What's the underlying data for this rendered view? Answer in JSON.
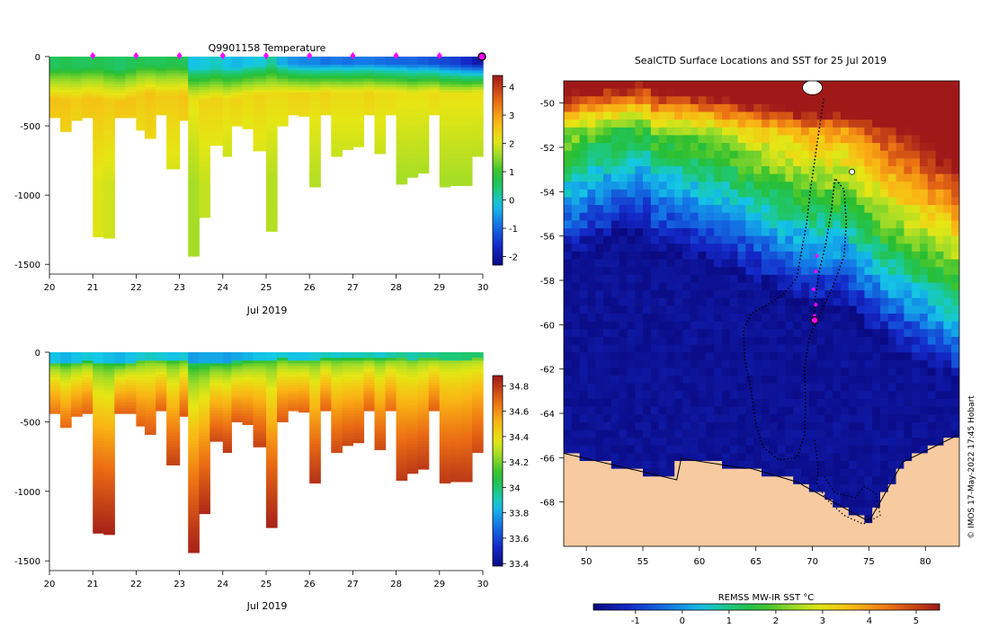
{
  "colors": {
    "land": "#f8caa0",
    "ice": "#eef0f6",
    "profile_marker": "#ff00ff",
    "current_marker": "#ff00ff",
    "axis": "#000000"
  },
  "chart_data": [
    {
      "id": "temperature_section",
      "type": "heatmap",
      "title": "Q9901158  Temperature",
      "xlabel": "Jul 2019",
      "ylabel": "",
      "x_ticks": [
        "20",
        "21",
        "22",
        "23",
        "24",
        "25",
        "26",
        "27",
        "28",
        "29",
        "30"
      ],
      "x_tick_values": [
        20,
        21,
        22,
        23,
        24,
        25,
        26,
        27,
        28,
        29,
        30
      ],
      "y_ticks": [
        "0",
        "-500",
        "-1000",
        "-1500"
      ],
      "y_tick_values": [
        0,
        -500,
        -1000,
        -1500
      ],
      "xlim": [
        20,
        30
      ],
      "ylim": [
        -1570,
        0
      ],
      "colorbar_ticks": [
        "-2",
        "-1",
        "0",
        "1",
        "2",
        "3",
        "4"
      ],
      "colorbar_values": [
        -2,
        -1,
        0,
        1,
        2,
        3,
        4
      ],
      "colorbar_range": [
        -2.3,
        4.4
      ],
      "profile_times": [
        21.0,
        22.0,
        23.0,
        24.0,
        25.0,
        26.0,
        27.0,
        28.0,
        29.0,
        30.0
      ],
      "profiles": {
        "time": [
          20.0,
          20.25,
          20.5,
          20.75,
          21.0,
          21.25,
          21.5,
          21.75,
          22.0,
          22.2,
          22.45,
          22.7,
          23.0,
          23.2,
          23.45,
          23.7,
          24.0,
          24.2,
          24.45,
          24.7,
          25.0,
          25.25,
          25.5,
          25.75,
          26.0,
          26.25,
          26.5,
          26.75,
          27.0,
          27.25,
          27.5,
          27.75,
          28.0,
          28.25,
          28.5,
          28.75,
          29.0,
          29.25,
          29.5,
          29.75,
          30.0
        ],
        "max_depth": [
          440,
          540,
          460,
          440,
          1300,
          1310,
          440,
          440,
          530,
          590,
          420,
          810,
          460,
          1440,
          1160,
          640,
          720,
          500,
          520,
          680,
          1260,
          500,
          420,
          430,
          940,
          420,
          720,
          670,
          650,
          420,
          700,
          420,
          920,
          870,
          840,
          420,
          940,
          930,
          930,
          720,
          720
        ],
        "surface_temp": [
          0.6,
          0.7,
          0.6,
          0.6,
          0.7,
          0.6,
          0.5,
          0.6,
          0.7,
          0.6,
          0.6,
          0.7,
          0.6,
          -0.2,
          -0.1,
          0.0,
          -0.2,
          -0.3,
          -0.2,
          -0.1,
          0.2,
          -0.4,
          -0.6,
          -0.7,
          -0.7,
          -0.9,
          -0.8,
          -0.9,
          -0.8,
          -0.8,
          -0.9,
          -1.0,
          -1.0,
          -1.0,
          -1.1,
          -1.2,
          -1.3,
          -1.4,
          -1.6,
          -1.9,
          -1.8
        ],
        "mixed_layer_depth": [
          150,
          160,
          150,
          140,
          150,
          160,
          170,
          150,
          120,
          110,
          120,
          120,
          120,
          150,
          160,
          150,
          150,
          140,
          120,
          120,
          110,
          100,
          110,
          110,
          110,
          100,
          100,
          100,
          100,
          100,
          100,
          100,
          100,
          110,
          100,
          100,
          110,
          110,
          110,
          100,
          110
        ],
        "deep_temp": [
          2.2,
          2.2,
          2.1,
          2.2,
          2.2,
          2.1,
          2.2,
          2.2,
          2.1,
          2.2,
          2.1,
          2.1,
          2.2,
          1.8,
          2.0,
          2.0,
          1.9,
          2.0,
          1.9,
          2.0,
          1.9,
          1.9,
          2.0,
          2.0,
          1.9,
          2.0,
          1.9,
          1.9,
          1.9,
          2.0,
          1.9,
          1.9,
          1.8,
          1.8,
          1.8,
          1.9,
          1.8,
          1.8,
          1.8,
          1.8,
          1.7
        ]
      }
    },
    {
      "id": "salinity_section",
      "type": "heatmap",
      "title": "",
      "xlabel": "Jul 2019",
      "ylabel": "",
      "x_ticks": [
        "20",
        "21",
        "22",
        "23",
        "24",
        "25",
        "26",
        "27",
        "28",
        "29",
        "30"
      ],
      "x_tick_values": [
        20,
        21,
        22,
        23,
        24,
        25,
        26,
        27,
        28,
        29,
        30
      ],
      "y_ticks": [
        "0",
        "-500",
        "-1000",
        "-1500"
      ],
      "y_tick_values": [
        0,
        -500,
        -1000,
        -1500
      ],
      "xlim": [
        20,
        30
      ],
      "ylim": [
        -1570,
        0
      ],
      "colorbar_ticks": [
        "33.4",
        "33.6",
        "33.8",
        "34",
        "34.2",
        "34.4",
        "34.6",
        "34.8"
      ],
      "colorbar_values": [
        33.4,
        33.6,
        33.8,
        34.0,
        34.2,
        34.4,
        34.6,
        34.8
      ],
      "colorbar_range": [
        33.38,
        34.88
      ],
      "surface_sal": [
        33.85,
        33.82,
        33.85,
        33.88,
        33.86,
        33.84,
        33.82,
        33.85,
        33.88,
        33.9,
        33.88,
        33.85,
        33.88,
        33.78,
        33.8,
        33.8,
        33.78,
        33.8,
        33.82,
        33.85,
        33.86,
        33.88,
        33.85,
        33.85,
        33.88,
        33.9,
        33.88,
        33.9,
        33.9,
        33.92,
        33.88,
        33.92,
        33.95,
        33.92,
        33.95,
        33.95,
        33.98,
        33.98,
        34.0,
        34.0,
        34.0
      ],
      "deep_sal": [
        34.66,
        34.68,
        34.68,
        34.7,
        34.86,
        34.86,
        34.7,
        34.7,
        34.7,
        34.72,
        34.7,
        34.78,
        34.72,
        34.86,
        34.84,
        34.76,
        34.8,
        34.72,
        34.72,
        34.78,
        34.86,
        34.72,
        34.68,
        34.7,
        34.82,
        34.7,
        34.76,
        34.76,
        34.76,
        34.7,
        34.76,
        34.68,
        34.8,
        34.8,
        34.8,
        34.7,
        34.8,
        34.8,
        34.8,
        34.76,
        34.76
      ]
    },
    {
      "id": "sst_map",
      "type": "heatmap",
      "title": "SealCTD Surface Locations and SST for 25 Jul 2019",
      "xlabel": "",
      "ylabel": "",
      "x_ticks": [
        "50",
        "55",
        "60",
        "65",
        "70",
        "75",
        "80"
      ],
      "x_tick_values": [
        50,
        55,
        60,
        65,
        70,
        75,
        80
      ],
      "y_ticks": [
        "-50",
        "-52",
        "-54",
        "-56",
        "-58",
        "-60",
        "-62",
        "-64",
        "-66",
        "-68"
      ],
      "y_tick_values": [
        -50,
        -52,
        -54,
        -56,
        -58,
        -60,
        -62,
        -64,
        -66,
        -68
      ],
      "lon_range": [
        48,
        83
      ],
      "lat_range": [
        -70,
        -49
      ],
      "colorbar_label": "REMSS MW-IR SST °C",
      "colorbar_ticks": [
        "-1",
        "0",
        "1",
        "2",
        "3",
        "4",
        "5"
      ],
      "colorbar_values": [
        -1,
        0,
        1,
        2,
        3,
        4,
        5
      ],
      "colorbar_range": [
        -1.9,
        5.5
      ],
      "current_position": {
        "lon": 70.2,
        "lat": -59.8
      },
      "recent_positions": [
        {
          "lon": 70.4,
          "lat": -56.9
        },
        {
          "lon": 70.3,
          "lat": -57.6
        },
        {
          "lon": 70.1,
          "lat": -58.4
        },
        {
          "lon": 70.3,
          "lat": -59.1
        },
        {
          "lon": 70.2,
          "lat": -59.6
        }
      ],
      "track": [
        {
          "lon": 71.0,
          "lat": -49.8
        },
        {
          "lon": 70.6,
          "lat": -51.2
        },
        {
          "lon": 70.2,
          "lat": -52.6
        },
        {
          "lon": 69.8,
          "lat": -54.0
        },
        {
          "lon": 69.5,
          "lat": -55.4
        },
        {
          "lon": 69.0,
          "lat": -56.8
        },
        {
          "lon": 68.6,
          "lat": -57.9
        },
        {
          "lon": 67.5,
          "lat": -58.6
        },
        {
          "lon": 66.0,
          "lat": -59.1
        },
        {
          "lon": 64.6,
          "lat": -59.5
        },
        {
          "lon": 63.9,
          "lat": -60.2
        },
        {
          "lon": 64.0,
          "lat": -61.5
        },
        {
          "lon": 64.6,
          "lat": -63.0
        },
        {
          "lon": 65.0,
          "lat": -64.5
        },
        {
          "lon": 65.6,
          "lat": -65.5
        },
        {
          "lon": 67.0,
          "lat": -66.1
        },
        {
          "lon": 68.6,
          "lat": -66.0
        },
        {
          "lon": 69.3,
          "lat": -65.0
        },
        {
          "lon": 69.4,
          "lat": -63.5
        },
        {
          "lon": 69.3,
          "lat": -62.0
        },
        {
          "lon": 69.7,
          "lat": -60.6
        },
        {
          "lon": 70.6,
          "lat": -59.6
        },
        {
          "lon": 71.8,
          "lat": -58.3
        },
        {
          "lon": 72.8,
          "lat": -56.9
        },
        {
          "lon": 73.0,
          "lat": -55.4
        },
        {
          "lon": 72.8,
          "lat": -53.9
        },
        {
          "lon": 72.0,
          "lat": -53.4
        },
        {
          "lon": 71.7,
          "lat": -54.8
        },
        {
          "lon": 71.2,
          "lat": -56.3
        },
        {
          "lon": 70.6,
          "lat": -57.6
        },
        {
          "lon": 70.2,
          "lat": -59.0
        },
        {
          "lon": 70.2,
          "lat": -59.8
        }
      ],
      "track_south": [
        {
          "lon": 70.2,
          "lat": -65.2
        },
        {
          "lon": 70.5,
          "lat": -66.4
        },
        {
          "lon": 70.4,
          "lat": -67.2
        },
        {
          "lon": 71.3,
          "lat": -67.9
        },
        {
          "lon": 72.8,
          "lat": -68.6
        },
        {
          "lon": 74.5,
          "lat": -69.0
        },
        {
          "lon": 76.0,
          "lat": -68.6
        },
        {
          "lon": 75.6,
          "lat": -67.6
        },
        {
          "lon": 74.6,
          "lat": -67.3
        },
        {
          "lon": 73.8,
          "lat": -67.8
        },
        {
          "lon": 72.0,
          "lat": -67.6
        },
        {
          "lon": 71.0,
          "lat": -66.8
        }
      ],
      "credit": "© IMOS 17-May-2022 17:45 Hobart"
    }
  ]
}
